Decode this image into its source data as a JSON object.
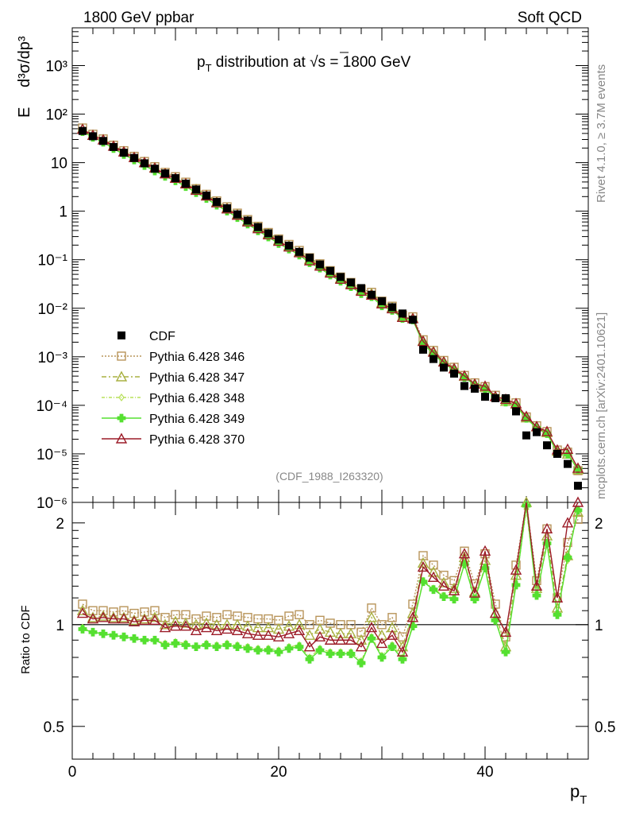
{
  "header": {
    "left": "1800 GeV ppbar",
    "right": "Soft QCD",
    "title_p": "p",
    "title_T": "T",
    "title_rest_a": " distribution at ",
    "title_rest_b": "s = 1800 GeV"
  },
  "side_labels": {
    "top": "Rivet 4.1.0, ≥ 3.7M events",
    "bottom": "mcplots.cern.ch [arXiv:2401.10621]"
  },
  "analysis_label": "(CDF_1988_I263320)",
  "colors": {
    "data": "#000000",
    "s346": "#b8955a",
    "s347": "#a8b040",
    "s348": "#b8e05a",
    "s349": "#55e030",
    "s370": "#9c1c28"
  },
  "chart_data": [
    {
      "type": "scatter",
      "panel": "main",
      "ylabel_E": "E",
      "ylabel_frac": "d³σ/dp³",
      "yscale": "log",
      "ylim": [
        1e-06,
        6000
      ],
      "xlim": [
        0,
        50
      ],
      "ytick_labels": [
        "10³",
        "10²",
        "10",
        "1",
        "10⁻¹",
        "10⁻²",
        "10⁻³",
        "10⁻⁴",
        "10⁻⁵",
        "10⁻⁶"
      ],
      "ytick_values": [
        1000,
        100,
        10,
        1,
        0.1,
        0.01,
        0.001,
        0.0001,
        1e-05,
        1e-06
      ],
      "legend": [
        {
          "key": "data",
          "label": "CDF"
        },
        {
          "key": "s346",
          "label": "Pythia 6.428 346"
        },
        {
          "key": "s347",
          "label": "Pythia 6.428 347"
        },
        {
          "key": "s348",
          "label": "Pythia 6.428 348"
        },
        {
          "key": "s349",
          "label": "Pythia 6.428 349"
        },
        {
          "key": "s370",
          "label": "Pythia 6.428 370"
        }
      ],
      "legend_position": "lower-left",
      "x": [
        1,
        2,
        3,
        4,
        5,
        6,
        7,
        8,
        9,
        10,
        11,
        12,
        13,
        14,
        15,
        16,
        17,
        18,
        19,
        20,
        21,
        22,
        23,
        24,
        25,
        26,
        27,
        28,
        29,
        30,
        31,
        32,
        33,
        34,
        35,
        36,
        37,
        38,
        39,
        40,
        41,
        42,
        43,
        44,
        45,
        46,
        47,
        48,
        49
      ],
      "data_y": [
        45,
        35,
        28,
        21,
        16,
        12.5,
        9.7,
        7.5,
        6,
        4.8,
        3.7,
        2.8,
        2.1,
        1.55,
        1.15,
        0.86,
        0.64,
        0.47,
        0.35,
        0.26,
        0.195,
        0.145,
        0.11,
        0.08,
        0.059,
        0.044,
        0.034,
        0.026,
        0.019,
        0.014,
        0.0105,
        0.0078,
        0.0058,
        0.0014,
        0.0009,
        0.0006,
        0.00045,
        0.00025,
        0.00022,
        0.00015,
        0.00014,
        0.00014,
        7.5e-05,
        2.4e-05,
        2.8e-05,
        1.5e-05,
        1e-05,
        6.2e-06,
        2.2e-06
      ]
    },
    {
      "type": "line",
      "panel": "ratio",
      "ylabel": "Ratio to CDF",
      "xlabel_p": "p",
      "xlabel_T": "T",
      "ylim": [
        0.4,
        2.3
      ],
      "xlim": [
        0,
        50
      ],
      "ytick_labels": [
        "0.5",
        "1",
        "2"
      ],
      "ytick_values": [
        0.5,
        1,
        2
      ],
      "xtick_labels": [
        "0",
        "20",
        "40"
      ],
      "xtick_values": [
        0,
        20,
        40
      ],
      "x": [
        1,
        2,
        3,
        4,
        5,
        6,
        7,
        8,
        9,
        10,
        11,
        12,
        13,
        14,
        15,
        16,
        17,
        18,
        19,
        20,
        21,
        22,
        23,
        24,
        25,
        26,
        27,
        28,
        29,
        30,
        31,
        32,
        33,
        34,
        35,
        36,
        37,
        38,
        39,
        40,
        41,
        42,
        43,
        44,
        45,
        46,
        47,
        48,
        49
      ],
      "series": [
        {
          "key": "s346",
          "name": "Pythia 6.428 346",
          "marker": "square",
          "dash": "2,2",
          "values": [
            1.15,
            1.1,
            1.1,
            1.09,
            1.1,
            1.08,
            1.09,
            1.1,
            1.05,
            1.07,
            1.07,
            1.04,
            1.06,
            1.05,
            1.07,
            1.06,
            1.05,
            1.04,
            1.04,
            1.03,
            1.06,
            1.07,
            1.0,
            1.03,
            1.01,
            1.0,
            1.0,
            0.95,
            1.12,
            1.0,
            1.05,
            0.92,
            1.15,
            1.6,
            1.5,
            1.4,
            1.35,
            1.65,
            1.32,
            1.62,
            1.15,
            0.92,
            1.5,
            2.4,
            1.35,
            1.92,
            1.2,
            1.75,
            2.05
          ]
        },
        {
          "key": "s347",
          "name": "Pythia 6.428 347",
          "marker": "triangle",
          "dash": "6,3,2,3",
          "values": [
            1.1,
            1.05,
            1.06,
            1.05,
            1.05,
            1.03,
            1.04,
            1.05,
            1.0,
            1.02,
            1.01,
            1.0,
            1.01,
            1.0,
            1.0,
            1.0,
            0.99,
            0.98,
            0.98,
            0.97,
            0.99,
            1.0,
            0.93,
            0.97,
            0.95,
            0.94,
            0.94,
            0.9,
            1.05,
            0.93,
            0.98,
            0.86,
            1.08,
            1.52,
            1.43,
            1.33,
            1.28,
            1.58,
            1.25,
            1.55,
            1.08,
            0.86,
            1.4,
            2.3,
            1.28,
            1.83,
            1.12,
            1.6,
            2.15
          ]
        },
        {
          "key": "s348",
          "name": "Pythia 6.428 348",
          "marker": "diamond",
          "dash": "4,2,1,2",
          "values": [
            0.98,
            0.95,
            0.94,
            0.93,
            0.92,
            0.91,
            0.9,
            0.9,
            0.88,
            0.89,
            0.88,
            0.86,
            0.88,
            0.87,
            0.88,
            0.87,
            0.86,
            0.85,
            0.85,
            0.84,
            0.86,
            0.87,
            0.8,
            0.85,
            0.83,
            0.83,
            0.83,
            0.78,
            0.92,
            0.81,
            0.87,
            0.8,
            1.0,
            1.35,
            1.28,
            1.22,
            1.2,
            1.52,
            1.2,
            1.48,
            1.04,
            0.84,
            1.32,
            2.2,
            1.23,
            1.72,
            1.08,
            1.55,
            2.2
          ]
        },
        {
          "key": "s349",
          "name": "Pythia 6.428 349",
          "marker": "cross",
          "dash": "",
          "values": [
            0.97,
            0.95,
            0.94,
            0.93,
            0.92,
            0.91,
            0.9,
            0.9,
            0.87,
            0.88,
            0.87,
            0.86,
            0.87,
            0.86,
            0.87,
            0.86,
            0.85,
            0.84,
            0.84,
            0.83,
            0.85,
            0.86,
            0.79,
            0.84,
            0.82,
            0.82,
            0.82,
            0.77,
            0.91,
            0.8,
            0.86,
            0.79,
            0.99,
            1.34,
            1.27,
            1.21,
            1.19,
            1.51,
            1.19,
            1.47,
            1.03,
            0.83,
            1.31,
            2.25,
            1.22,
            1.74,
            1.07,
            1.58,
            2.18
          ]
        },
        {
          "key": "s370",
          "name": "Pythia 6.428 370",
          "marker": "triangle",
          "dash": "",
          "values": [
            1.08,
            1.04,
            1.05,
            1.04,
            1.04,
            1.02,
            1.03,
            1.03,
            0.98,
            0.99,
            0.99,
            0.96,
            0.98,
            0.96,
            0.97,
            0.96,
            0.94,
            0.93,
            0.93,
            0.92,
            0.94,
            0.96,
            0.86,
            0.92,
            0.9,
            0.9,
            0.9,
            0.86,
            0.98,
            0.88,
            0.93,
            0.83,
            1.05,
            1.48,
            1.38,
            1.3,
            1.26,
            1.62,
            1.24,
            1.65,
            1.08,
            0.95,
            1.45,
            2.45,
            1.3,
            1.92,
            1.2,
            2.0,
            2.3
          ]
        }
      ]
    }
  ]
}
